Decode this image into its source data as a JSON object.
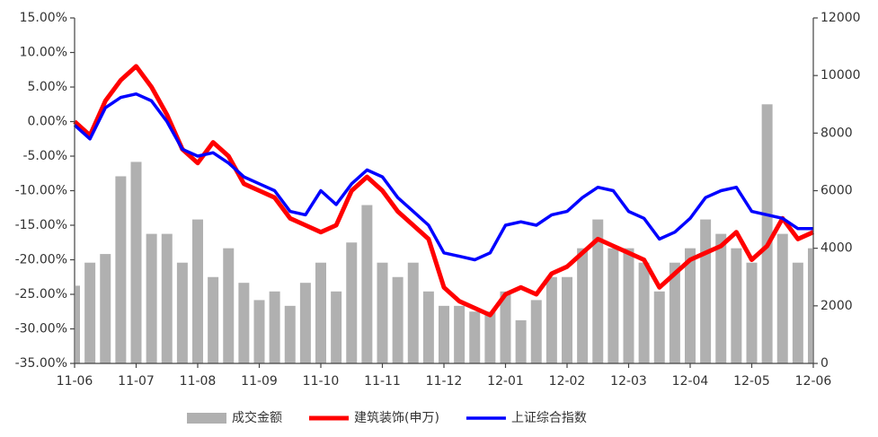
{
  "chart_data": {
    "type": "combo",
    "categories": [
      "11-06",
      null,
      null,
      null,
      "11-07",
      null,
      null,
      null,
      "11-08",
      null,
      null,
      null,
      "11-09",
      null,
      null,
      null,
      "11-10",
      null,
      null,
      null,
      "11-11",
      null,
      null,
      null,
      "11-12",
      null,
      null,
      null,
      "12-01",
      null,
      null,
      null,
      "12-02",
      null,
      null,
      null,
      "12-03",
      null,
      null,
      null,
      "12-04",
      null,
      null,
      null,
      "12-05",
      null,
      null,
      null,
      "12-06"
    ],
    "series": [
      {
        "name": "成交金额",
        "type": "bar",
        "axis": "y2",
        "color": "#b0b0b0",
        "values": [
          2700,
          3500,
          3800,
          6500,
          7000,
          4500,
          4500,
          3500,
          5000,
          3000,
          4000,
          2800,
          2200,
          2500,
          2000,
          2800,
          3500,
          2500,
          4200,
          5500,
          3500,
          3000,
          3500,
          2500,
          2000,
          2000,
          1800,
          1800,
          2500,
          1500,
          2200,
          3000,
          3000,
          4000,
          5000,
          4000,
          4000,
          3500,
          2500,
          3500,
          4000,
          5000,
          4500,
          4000,
          3500,
          9000,
          4500,
          3500,
          4000
        ]
      },
      {
        "name": "建筑装饰(申万)",
        "type": "line",
        "axis": "y",
        "color": "#ff0000",
        "values": [
          0,
          -2,
          3,
          6,
          8,
          5,
          1,
          -4,
          -6,
          -3,
          -5,
          -9,
          -10,
          -11,
          -14,
          -15,
          -16,
          -15,
          -10,
          -8,
          -10,
          -13,
          -15,
          -17,
          -24,
          -26,
          -27,
          -28,
          -25,
          -24,
          -25,
          -22,
          -21,
          -19,
          -17,
          -18,
          -19,
          -20,
          -24,
          -22,
          -20,
          -19,
          -18,
          -16,
          -20,
          -18,
          -14,
          -17,
          -16
        ]
      },
      {
        "name": "上证综合指数",
        "type": "line",
        "axis": "y",
        "color": "#0000ff",
        "values": [
          -0.5,
          -2.5,
          2,
          3.5,
          4,
          3,
          0,
          -4,
          -5,
          -4.5,
          -6,
          -8,
          -9,
          -10,
          -13,
          -13.5,
          -10,
          -12,
          -9,
          -7,
          -8,
          -11,
          -13,
          -15,
          -19,
          -19.5,
          -20,
          -19,
          -15,
          -14.5,
          -15,
          -13.5,
          -13,
          -11,
          -9.5,
          -10,
          -13,
          -14,
          -17,
          -16,
          -14,
          -11,
          -10,
          -9.5,
          -13,
          -13.5,
          -14,
          -15.5,
          -15.5
        ]
      }
    ],
    "ylim": [
      -35,
      15
    ],
    "yticks": [
      {
        "value": -35,
        "label": "-35.00%"
      },
      {
        "value": -30,
        "label": "-30.00%"
      },
      {
        "value": -25,
        "label": "-25.00%"
      },
      {
        "value": -20,
        "label": "-20.00%"
      },
      {
        "value": -15,
        "label": "-15.00%"
      },
      {
        "value": -10,
        "label": "-10.00%"
      },
      {
        "value": -5,
        "label": "-5.00%"
      },
      {
        "value": 0,
        "label": "0.00%"
      },
      {
        "value": 5,
        "label": "5.00%"
      },
      {
        "value": 10,
        "label": "10.00%"
      },
      {
        "value": 15,
        "label": "15.00%"
      }
    ],
    "y2lim": [
      0,
      12000
    ],
    "y2ticks": [
      0,
      2000,
      4000,
      6000,
      8000,
      10000,
      12000
    ],
    "legend": "bottom"
  }
}
